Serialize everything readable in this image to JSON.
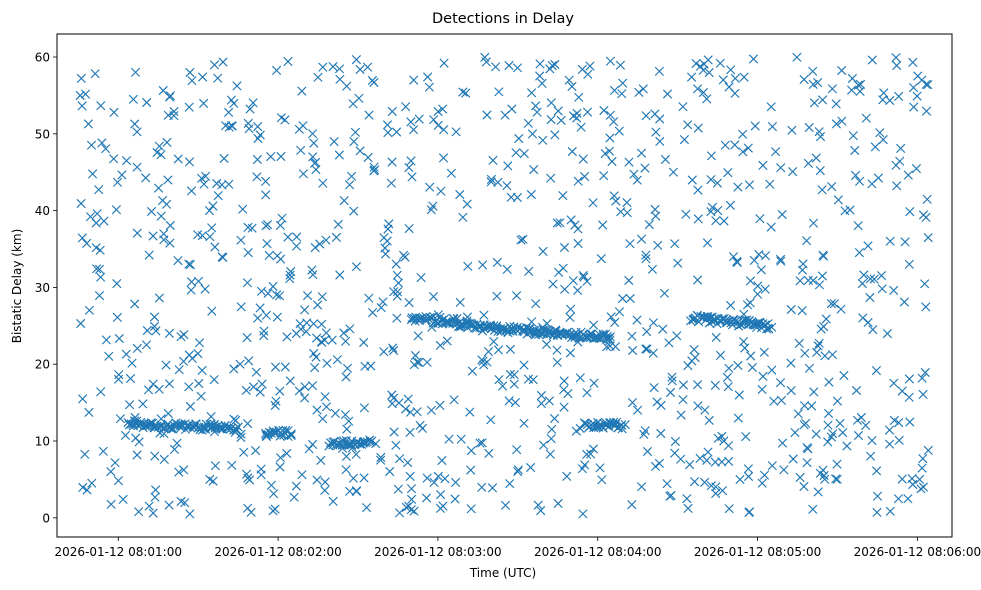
{
  "chart_data": {
    "type": "scatter",
    "title": "Detections in Delay",
    "xlabel": "Time (UTC)",
    "ylabel": "Bistatic Delay (km)",
    "marker": "x",
    "color": "#1f77b4",
    "grid": false,
    "legend": "none",
    "x_start": "2026-01-12 08:00:37",
    "x_end": "2026-01-12 08:06:13",
    "xlim": [
      "2026-01-12 08:00:37",
      "2026-01-12 08:06:13"
    ],
    "ylim": [
      -2.5,
      63
    ],
    "x_ticks": [
      "2026-01-12 08:01:00",
      "2026-01-12 08:02:00",
      "2026-01-12 08:03:00",
      "2026-01-12 08:04:00",
      "2026-01-12 08:05:00",
      "2026-01-12 08:06:00"
    ],
    "y_ticks": [
      0,
      10,
      20,
      30,
      40,
      50,
      60
    ],
    "point_count": 1500,
    "tracks": [
      {
        "start": "2026-01-12 08:01:04",
        "end": "2026-01-12 08:01:35",
        "delay_start": 12.2,
        "delay_end": 11.8
      },
      {
        "start": "2026-01-12 08:01:35",
        "end": "2026-01-12 08:01:45",
        "delay_start": 12.0,
        "delay_end": 11.5
      },
      {
        "start": "2026-01-12 08:02:50",
        "end": "2026-01-12 08:03:08",
        "delay_start": 26.0,
        "delay_end": 25.5
      },
      {
        "start": "2026-01-12 08:03:08",
        "end": "2026-01-12 08:04:05",
        "delay_start": 25.0,
        "delay_end": 23.5
      },
      {
        "start": "2026-01-12 08:03:55",
        "end": "2026-01-12 08:04:10",
        "delay_start": 12.0,
        "delay_end": 12.0
      },
      {
        "start": "2026-01-12 08:04:35",
        "end": "2026-01-12 08:05:05",
        "delay_start": 26.0,
        "delay_end": 25.0
      },
      {
        "start": "2026-01-12 08:01:55",
        "end": "2026-01-12 08:02:05",
        "delay_start": 11.0,
        "delay_end": 11.0
      },
      {
        "start": "2026-01-12 08:02:20",
        "end": "2026-01-12 08:02:35",
        "delay_start": 9.5,
        "delay_end": 10.0
      }
    ]
  }
}
